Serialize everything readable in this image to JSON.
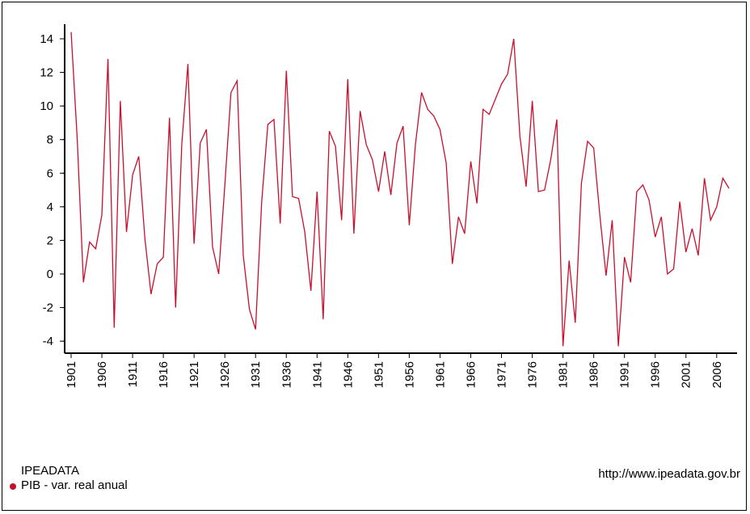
{
  "chart_data": {
    "type": "line",
    "ylim": [
      -4.5,
      14.5
    ],
    "yticks": [
      -4,
      -2,
      0,
      2,
      4,
      6,
      8,
      10,
      12,
      14
    ],
    "xlim": [
      1901,
      2008
    ],
    "xticks": [
      1901,
      1906,
      1911,
      1916,
      1921,
      1926,
      1931,
      1936,
      1941,
      1946,
      1951,
      1956,
      1961,
      1966,
      1971,
      1976,
      1981,
      1986,
      1991,
      1996,
      2001,
      2006
    ],
    "color": "#c8102e",
    "grid": false,
    "legend_position": "bottom-left",
    "series": [
      {
        "name": "PIB - var. real anual",
        "x": [
          1901,
          1902,
          1903,
          1904,
          1905,
          1906,
          1907,
          1908,
          1909,
          1910,
          1911,
          1912,
          1913,
          1914,
          1915,
          1916,
          1917,
          1918,
          1919,
          1920,
          1921,
          1922,
          1923,
          1924,
          1925,
          1926,
          1927,
          1928,
          1929,
          1930,
          1931,
          1932,
          1933,
          1934,
          1935,
          1936,
          1937,
          1938,
          1939,
          1940,
          1941,
          1942,
          1943,
          1944,
          1945,
          1946,
          1947,
          1948,
          1949,
          1950,
          1951,
          1952,
          1953,
          1954,
          1955,
          1956,
          1957,
          1958,
          1959,
          1960,
          1961,
          1962,
          1963,
          1964,
          1965,
          1966,
          1967,
          1968,
          1969,
          1970,
          1971,
          1972,
          1973,
          1974,
          1975,
          1976,
          1977,
          1978,
          1979,
          1980,
          1981,
          1982,
          1983,
          1984,
          1985,
          1986,
          1987,
          1988,
          1989,
          1990,
          1991,
          1992,
          1993,
          1994,
          1995,
          1996,
          1997,
          1998,
          1999,
          2000,
          2001,
          2002,
          2003,
          2004,
          2005,
          2006,
          2007,
          2008
        ],
        "y": [
          14.4,
          8.0,
          -0.5,
          1.9,
          1.5,
          3.5,
          12.8,
          -3.2,
          10.3,
          2.5,
          5.9,
          7.0,
          2.1,
          -1.2,
          0.6,
          1.0,
          9.3,
          -2.0,
          7.7,
          12.5,
          1.8,
          7.8,
          8.6,
          1.6,
          0.0,
          5.3,
          10.8,
          11.5,
          1.1,
          -2.1,
          -3.3,
          4.3,
          8.9,
          9.2,
          3.0,
          12.1,
          4.6,
          4.5,
          2.5,
          -1.0,
          4.9,
          -2.7,
          8.5,
          7.6,
          3.2,
          11.6,
          2.4,
          9.7,
          7.7,
          6.8,
          4.9,
          7.3,
          4.7,
          7.8,
          8.8,
          2.9,
          7.7,
          10.8,
          9.8,
          9.4,
          8.6,
          6.6,
          0.6,
          3.4,
          2.4,
          6.7,
          4.2,
          9.8,
          9.5,
          10.4,
          11.3,
          11.9,
          14.0,
          8.2,
          5.2,
          10.3,
          4.9,
          5.0,
          6.8,
          9.2,
          -4.3,
          0.8,
          -2.9,
          5.4,
          7.9,
          7.5,
          3.5,
          -0.1,
          3.2,
          -4.3,
          1.0,
          -0.5,
          4.9,
          5.3,
          4.4,
          2.2,
          3.4,
          0.0,
          0.3,
          4.3,
          1.3,
          2.7,
          1.1,
          5.7,
          3.2,
          4.0,
          5.7,
          5.1
        ]
      }
    ]
  },
  "legend": {
    "source": "IPEADATA",
    "series_label": "PIB - var. real anual"
  },
  "source_url": "http://www.ipeadata.gov.br"
}
